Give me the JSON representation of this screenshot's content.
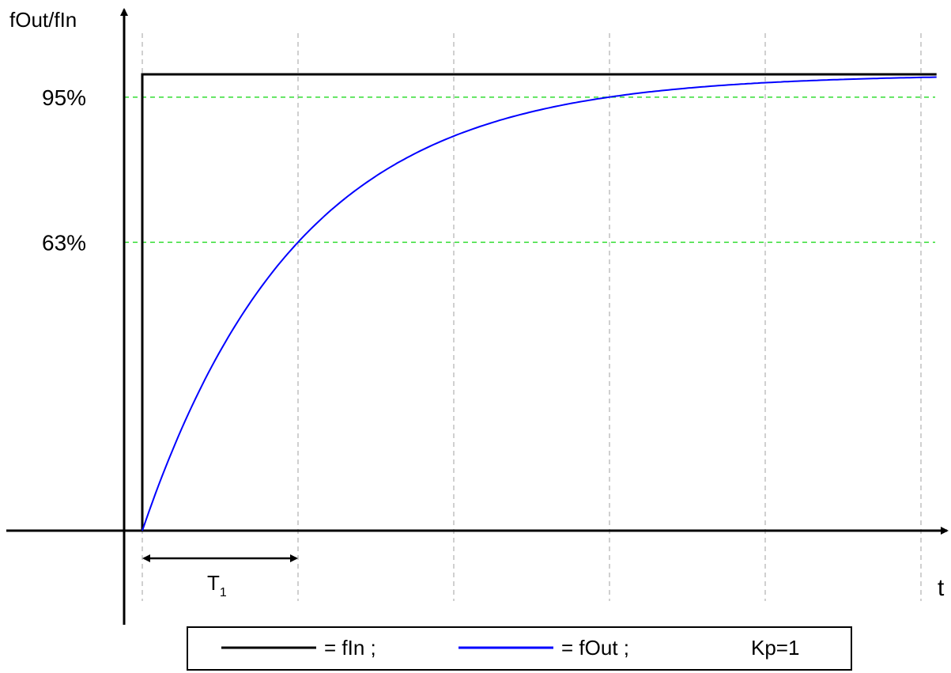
{
  "chart_data": {
    "type": "line",
    "ylabel": "fOut/fIn",
    "xlabel": "t",
    "t1_label": "T",
    "t1_subscript": "1",
    "y_ticks": [
      {
        "label": "63%",
        "value": 0.632
      },
      {
        "label": "95%",
        "value": 0.95
      }
    ],
    "x_gridlines_in_T1": [
      0,
      1,
      2,
      3,
      4,
      5
    ],
    "xlim_T1": [
      -0.12,
      5.1
    ],
    "ylim": [
      -0.25,
      1.2
    ],
    "series": [
      {
        "name": "fIn",
        "kind": "step",
        "step_at": 0,
        "before": 0,
        "after": 1
      },
      {
        "name": "fOut",
        "kind": "first_order_response",
        "gain": 1,
        "time_constant": 1,
        "x_end": 5.1
      }
    ],
    "legend": {
      "entries": [
        {
          "text": "= fIn ;"
        },
        {
          "text": "= fOut ;"
        }
      ],
      "note": "Kp=1",
      "placement": "bottom-center"
    },
    "colors": {
      "fIn": "#000000",
      "fOut": "#0000ff",
      "ref_lines": "#33dd33",
      "grid": "#b0b0b0",
      "axes": "#000000"
    }
  }
}
